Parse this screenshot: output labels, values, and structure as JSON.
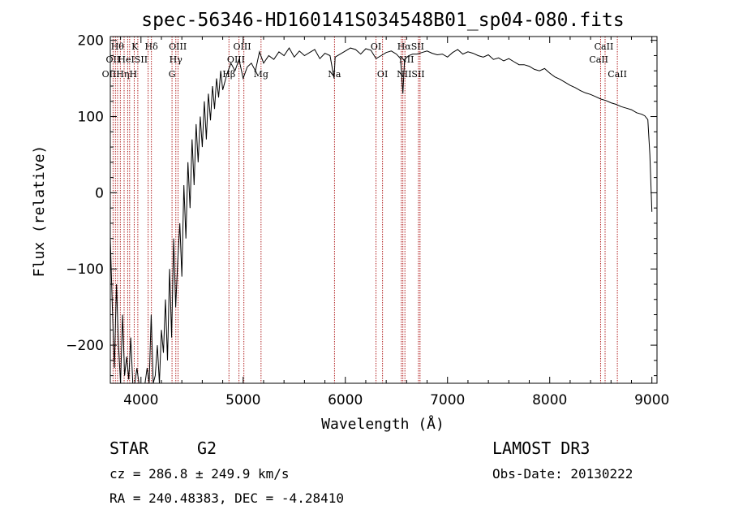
{
  "chart_data": {
    "type": "line",
    "title": "spec-56346-HD160141S034548B01_sp04-080.fits",
    "xlabel": "Wavelength (Å)",
    "ylabel": "Flux (relative)",
    "xlim": [
      3700,
      9050
    ],
    "ylim": [
      -250,
      205
    ],
    "xticks": [
      4000,
      5000,
      6000,
      7000,
      8000,
      9000
    ],
    "yticks": [
      -200,
      -100,
      0,
      100,
      200
    ],
    "grid": false,
    "series": [
      {
        "name": "spectrum",
        "x": [
          3700,
          3720,
          3740,
          3760,
          3780,
          3800,
          3820,
          3840,
          3860,
          3880,
          3900,
          3920,
          3940,
          3960,
          3980,
          4000,
          4020,
          4040,
          4060,
          4080,
          4100,
          4120,
          4140,
          4160,
          4180,
          4200,
          4220,
          4240,
          4260,
          4280,
          4300,
          4320,
          4340,
          4360,
          4380,
          4400,
          4420,
          4440,
          4460,
          4480,
          4500,
          4520,
          4540,
          4560,
          4580,
          4600,
          4620,
          4640,
          4660,
          4680,
          4700,
          4720,
          4740,
          4760,
          4780,
          4800,
          4840,
          4880,
          4920,
          4960,
          5000,
          5040,
          5080,
          5120,
          5160,
          5200,
          5250,
          5300,
          5350,
          5400,
          5450,
          5500,
          5550,
          5600,
          5650,
          5700,
          5750,
          5800,
          5850,
          5890,
          5900,
          5950,
          6000,
          6050,
          6100,
          6150,
          6200,
          6250,
          6300,
          6350,
          6400,
          6450,
          6500,
          6540,
          6563,
          6580,
          6620,
          6660,
          6700,
          6750,
          6800,
          6850,
          6900,
          6950,
          7000,
          7050,
          7100,
          7150,
          7200,
          7250,
          7300,
          7350,
          7400,
          7450,
          7500,
          7550,
          7600,
          7650,
          7700,
          7750,
          7800,
          7850,
          7900,
          7950,
          8000,
          8050,
          8100,
          8150,
          8200,
          8250,
          8300,
          8350,
          8400,
          8450,
          8500,
          8550,
          8600,
          8650,
          8700,
          8750,
          8800,
          8850,
          8900,
          8930,
          8960,
          8980,
          9000
        ],
        "y": [
          -60,
          -150,
          -230,
          -120,
          -200,
          -250,
          -160,
          -240,
          -215,
          -245,
          -190,
          -250,
          -250,
          -230,
          -250,
          -250,
          -250,
          -250,
          -230,
          -250,
          -160,
          -250,
          -240,
          -200,
          -250,
          -180,
          -210,
          -140,
          -220,
          -100,
          -190,
          -60,
          -150,
          -90,
          -40,
          -110,
          10,
          -60,
          40,
          -20,
          70,
          10,
          90,
          40,
          100,
          60,
          120,
          70,
          130,
          95,
          140,
          110,
          150,
          125,
          160,
          135,
          155,
          170,
          160,
          175,
          150,
          165,
          170,
          160,
          185,
          170,
          180,
          175,
          185,
          180,
          190,
          178,
          186,
          180,
          184,
          188,
          176,
          183,
          180,
          150,
          178,
          182,
          186,
          190,
          188,
          182,
          189,
          187,
          176,
          180,
          184,
          186,
          182,
          176,
          130,
          175,
          180,
          182,
          182,
          184,
          186,
          183,
          181,
          182,
          178,
          184,
          188,
          182,
          185,
          183,
          180,
          178,
          181,
          175,
          177,
          173,
          176,
          172,
          168,
          168,
          166,
          162,
          160,
          163,
          157,
          152,
          149,
          145,
          141,
          138,
          134,
          131,
          129,
          126,
          123,
          121,
          118,
          116,
          113,
          111,
          109,
          105,
          103,
          101,
          96,
          50,
          -25
        ]
      }
    ],
    "line_markers": [
      {
        "wavelength": 3727,
        "label": "OII"
      },
      {
        "wavelength": 3750,
        "label": "Hθ"
      },
      {
        "wavelength": 3771,
        "label": "Hθ"
      },
      {
        "wavelength": 3798,
        "label": "Hη"
      },
      {
        "wavelength": 3835,
        "label": "Hη"
      },
      {
        "wavelength": 3870,
        "label": "HeI"
      },
      {
        "wavelength": 3889,
        "label": "Hη"
      },
      {
        "wavelength": 3934,
        "label": "K"
      },
      {
        "wavelength": 3969,
        "label": "H"
      },
      {
        "wavelength": 4070,
        "label": "SII"
      },
      {
        "wavelength": 4102,
        "label": "Hδ"
      },
      {
        "wavelength": 4304,
        "label": "G"
      },
      {
        "wavelength": 4341,
        "label": "Hγ"
      },
      {
        "wavelength": 4363,
        "label": "OIII"
      },
      {
        "wavelength": 4861,
        "label": "Hβ"
      },
      {
        "wavelength": 4959,
        "label": "OIII"
      },
      {
        "wavelength": 5007,
        "label": "OIII"
      },
      {
        "wavelength": 5175,
        "label": "Mg"
      },
      {
        "wavelength": 5894,
        "label": "Na"
      },
      {
        "wavelength": 6300,
        "label": "OI"
      },
      {
        "wavelength": 6364,
        "label": "OI"
      },
      {
        "wavelength": 6548,
        "label": "NII"
      },
      {
        "wavelength": 6563,
        "label": "Hα"
      },
      {
        "wavelength": 6583,
        "label": "NII"
      },
      {
        "wavelength": 6716,
        "label": "SII"
      },
      {
        "wavelength": 6731,
        "label": "SII"
      },
      {
        "wavelength": 8498,
        "label": "CaII"
      },
      {
        "wavelength": 8542,
        "label": "CaII"
      },
      {
        "wavelength": 8662,
        "label": "CaII"
      }
    ],
    "line_label_texts": [
      {
        "text": "Hθ",
        "wavelength": 3770,
        "row": 1
      },
      {
        "text": "K",
        "wavelength": 3940,
        "row": 1
      },
      {
        "text": "Hδ",
        "wavelength": 4102,
        "row": 1
      },
      {
        "text": "OIII",
        "wavelength": 4360,
        "row": 1
      },
      {
        "text": "OIII",
        "wavelength": 4990,
        "row": 1
      },
      {
        "text": "OI",
        "wavelength": 6300,
        "row": 1
      },
      {
        "text": "HαSII",
        "wavelength": 6640,
        "row": 1
      },
      {
        "text": "CaII",
        "wavelength": 8530,
        "row": 1
      },
      {
        "text": "OII",
        "wavelength": 3727,
        "row": 2
      },
      {
        "text": "HeISII",
        "wavelength": 3920,
        "row": 2
      },
      {
        "text": "Hγ",
        "wavelength": 4341,
        "row": 2
      },
      {
        "text": "OIII",
        "wavelength": 4930,
        "row": 2
      },
      {
        "text": "NII",
        "wavelength": 6600,
        "row": 2
      },
      {
        "text": "CaII",
        "wavelength": 8480,
        "row": 2
      },
      {
        "text": "OIIHηH",
        "wavelength": 3790,
        "row": 3
      },
      {
        "text": "G",
        "wavelength": 4304,
        "row": 3
      },
      {
        "text": "Hβ",
        "wavelength": 4861,
        "row": 3
      },
      {
        "text": "Mg",
        "wavelength": 5175,
        "row": 3
      },
      {
        "text": "Na",
        "wavelength": 5894,
        "row": 3
      },
      {
        "text": "OI",
        "wavelength": 6364,
        "row": 3
      },
      {
        "text": "NIISII",
        "wavelength": 6640,
        "row": 3
      },
      {
        "text": "CaII",
        "wavelength": 8662,
        "row": 3
      }
    ]
  },
  "info": {
    "class_label": "STAR",
    "subclass_label": "G2",
    "survey": "LAMOST DR3",
    "cz": "cz = 286.8 ± 249.9 km/s",
    "obs_date": "Obs-Date: 20130222",
    "coords": "RA = 240.48383, DEC =  -4.28410"
  },
  "colors": {
    "line_marker": "#b22222",
    "spectrum": "#000000"
  }
}
